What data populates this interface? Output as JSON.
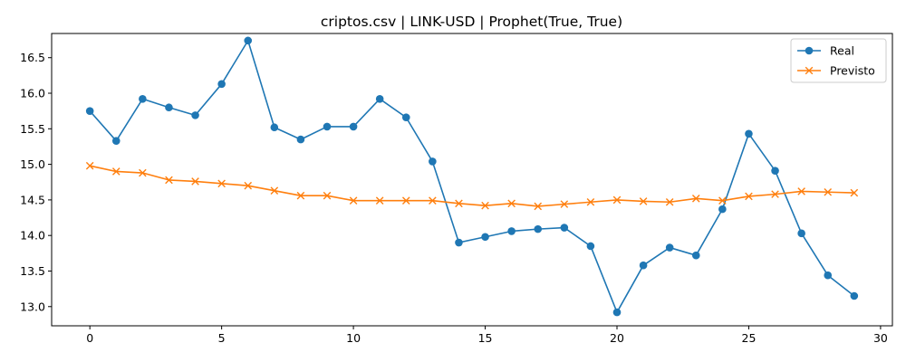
{
  "chart_data": {
    "type": "line",
    "title": "criptos.csv | LINK-USD | Prophet(True, True)",
    "xlabel": "",
    "ylabel": "",
    "xlim": [
      -1.45,
      30.45
    ],
    "ylim": [
      12.73,
      16.84
    ],
    "xticks": [
      0,
      5,
      10,
      15,
      20,
      25,
      30
    ],
    "xtick_labels": [
      "0",
      "5",
      "10",
      "15",
      "20",
      "25",
      "30"
    ],
    "yticks": [
      13.0,
      13.5,
      14.0,
      14.5,
      15.0,
      15.5,
      16.0,
      16.5
    ],
    "ytick_labels": [
      "13.0",
      "13.5",
      "14.0",
      "14.5",
      "15.0",
      "15.5",
      "16.0",
      "16.5"
    ],
    "grid": false,
    "legend_position": "top-right",
    "x": [
      0,
      1,
      2,
      3,
      4,
      5,
      6,
      7,
      8,
      9,
      10,
      11,
      12,
      13,
      14,
      15,
      16,
      17,
      18,
      19,
      20,
      21,
      22,
      23,
      24,
      25,
      26,
      27,
      28,
      29
    ],
    "series": [
      {
        "name": "Real",
        "color": "#1f77b4",
        "marker": "circle",
        "values": [
          15.75,
          15.33,
          15.92,
          15.8,
          15.69,
          16.13,
          16.74,
          15.52,
          15.35,
          15.53,
          15.53,
          15.92,
          15.66,
          15.04,
          13.9,
          13.98,
          14.06,
          14.09,
          14.11,
          13.85,
          12.92,
          13.58,
          13.83,
          13.72,
          14.37,
          15.43,
          14.91,
          14.03,
          13.44,
          13.15
        ]
      },
      {
        "name": "Previsto",
        "color": "#ff7f0e",
        "marker": "x",
        "values": [
          14.98,
          14.9,
          14.88,
          14.78,
          14.76,
          14.73,
          14.7,
          14.63,
          14.56,
          14.56,
          14.49,
          14.49,
          14.49,
          14.49,
          14.45,
          14.42,
          14.45,
          14.41,
          14.44,
          14.47,
          14.5,
          14.48,
          14.47,
          14.52,
          14.49,
          14.55,
          14.58,
          14.62,
          14.61,
          14.6
        ]
      }
    ]
  }
}
